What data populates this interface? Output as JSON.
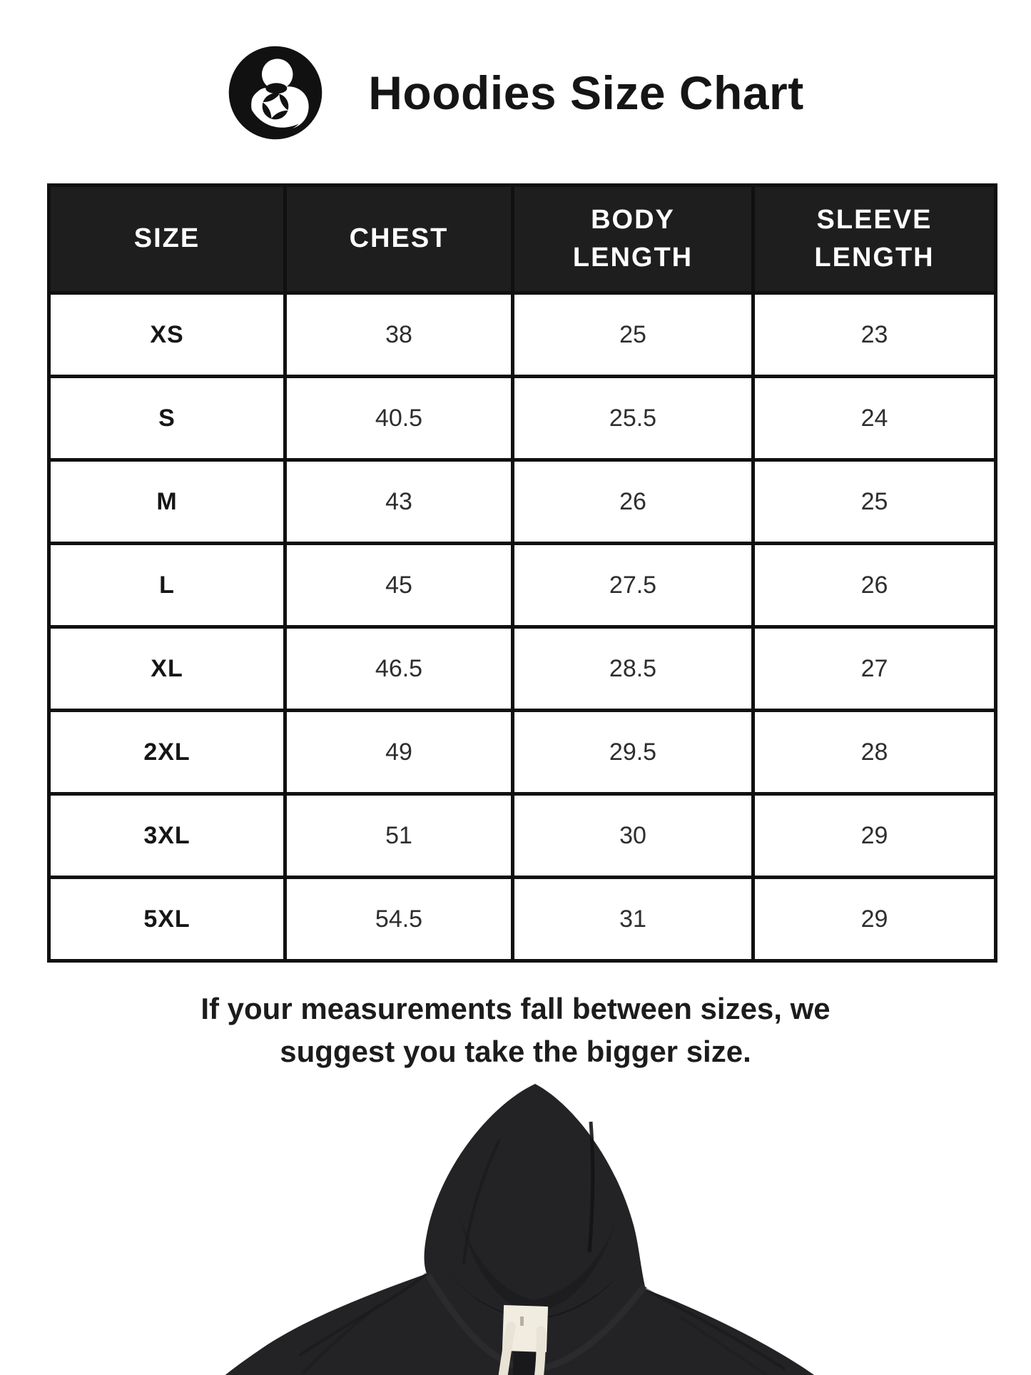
{
  "header": {
    "title": "Hoodies Size Chart",
    "logo_icon": "mother-and-child-star-logo"
  },
  "table": {
    "columns": [
      "SIZE",
      "CHEST",
      "BODY LENGTH",
      "SLEEVE LENGTH"
    ],
    "rows": [
      [
        "XS",
        "38",
        "25",
        "23"
      ],
      [
        "S",
        "40.5",
        "25.5",
        "24"
      ],
      [
        "M",
        "43",
        "26",
        "25"
      ],
      [
        "L",
        "45",
        "27.5",
        "26"
      ],
      [
        "XL",
        "46.5",
        "28.5",
        "27"
      ],
      [
        "2XL",
        "49",
        "29.5",
        "28"
      ],
      [
        "3XL",
        "51",
        "30",
        "29"
      ],
      [
        "5XL",
        "54.5",
        "31",
        "29"
      ]
    ],
    "header_bg": "#1e1e1e",
    "header_text_color": "#ffffff",
    "border_color": "#101010",
    "cell_text_color": "#2e2e2e"
  },
  "note": {
    "line1": "If your measurements fall between sizes, we",
    "line2": "suggest you take the bigger size."
  },
  "hoodie": {
    "description": "black pullover hoodie with cream drawstrings, front view, cropped at page bottom",
    "body_color": "#232326",
    "drawstring_color": "#e8e3d5",
    "tag_color": "#f1ece0"
  }
}
